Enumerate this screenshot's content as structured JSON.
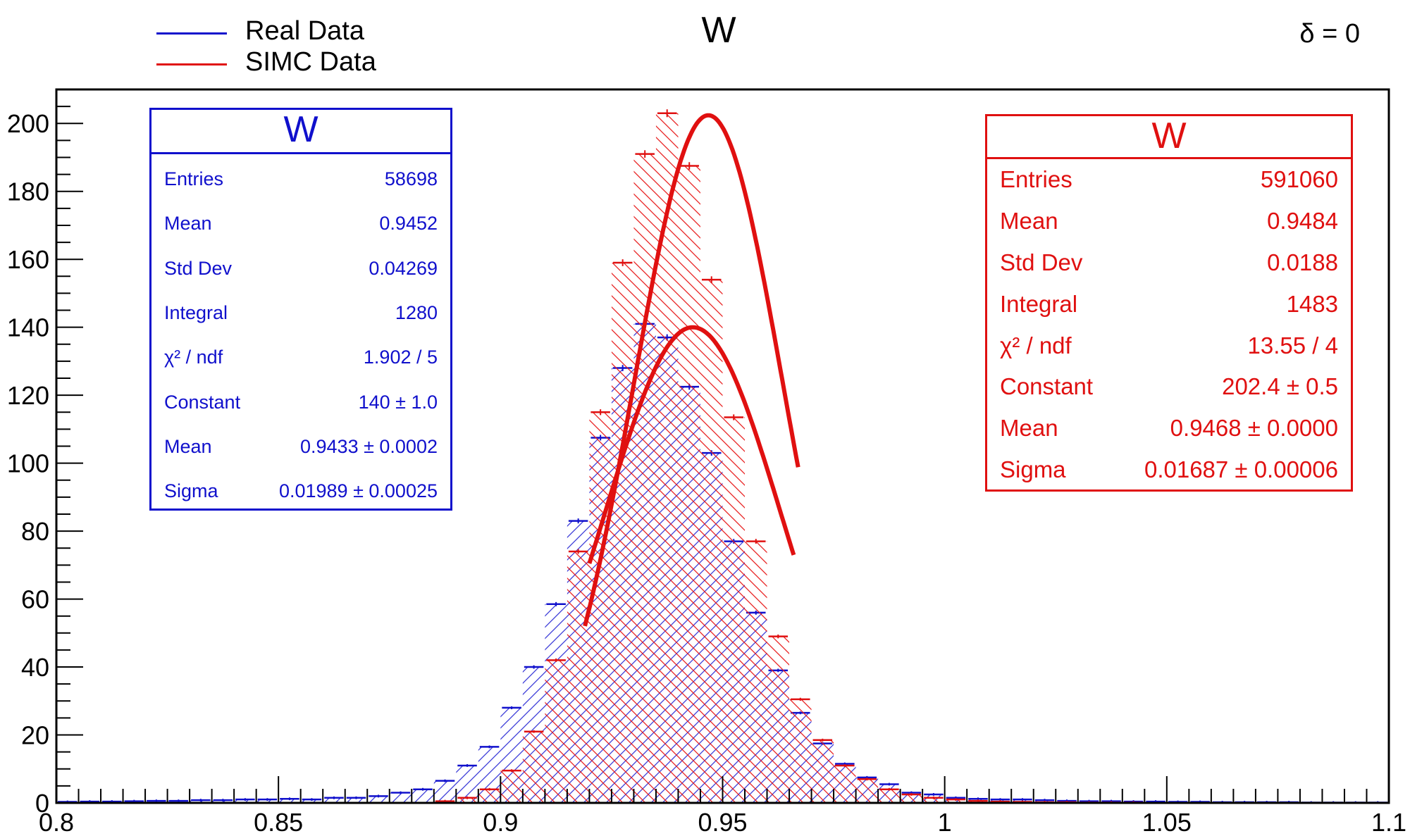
{
  "legend": [
    {
      "label": "Real Data",
      "color": "#1010cc"
    },
    {
      "label": "SIMC Data",
      "color": "#e01010"
    }
  ],
  "title": "W",
  "delta_label": "δ = 0",
  "stats_real": {
    "title": "W",
    "color": "#1010cc",
    "rows": [
      {
        "label": "Entries",
        "value": "58698"
      },
      {
        "label": "Mean",
        "value": "0.9452"
      },
      {
        "label": "Std Dev",
        "value": "0.04269"
      },
      {
        "label": "Integral",
        "value": "1280"
      },
      {
        "label": "χ² / ndf",
        "value": "1.902 / 5"
      },
      {
        "label": "Constant",
        "value": "140 ± 1.0"
      },
      {
        "label": "Mean",
        "value": "0.9433 ± 0.0002"
      },
      {
        "label": "Sigma",
        "value": "0.01989 ± 0.00025"
      }
    ]
  },
  "stats_simc": {
    "title": "W",
    "color": "#e01010",
    "rows": [
      {
        "label": "Entries",
        "value": "591060"
      },
      {
        "label": "Mean",
        "value": "0.9484"
      },
      {
        "label": "Std Dev",
        "value": "0.0188"
      },
      {
        "label": "Integral",
        "value": "1483"
      },
      {
        "label": "χ² / ndf",
        "value": "13.55 / 4"
      },
      {
        "label": "Constant",
        "value": "202.4 ± 0.5"
      },
      {
        "label": "Mean",
        "value": "0.9468 ± 0.0000"
      },
      {
        "label": "Sigma",
        "value": "0.01687 ± 0.00006"
      }
    ]
  },
  "chart_data": {
    "type": "bar",
    "title": "W",
    "xlim": [
      0.8,
      1.1
    ],
    "ylim": [
      0,
      210
    ],
    "bin_width": 0.005,
    "bin_low": [
      0.8,
      0.805,
      0.81,
      0.815,
      0.82,
      0.825,
      0.83,
      0.835,
      0.84,
      0.845,
      0.85,
      0.855,
      0.86,
      0.865,
      0.87,
      0.875,
      0.88,
      0.885,
      0.89,
      0.895,
      0.9,
      0.905,
      0.91,
      0.915,
      0.92,
      0.925,
      0.93,
      0.935,
      0.94,
      0.945,
      0.95,
      0.955,
      0.96,
      0.965,
      0.97,
      0.975,
      0.98,
      0.985,
      0.99,
      0.995,
      1.0,
      1.005,
      1.01,
      1.015,
      1.02,
      1.025,
      1.03,
      1.035,
      1.04,
      1.045,
      1.05,
      1.055,
      1.06,
      1.065,
      1.07,
      1.075,
      1.08,
      1.085,
      1.09,
      1.095
    ],
    "x_ticks": [
      0.8,
      0.85,
      0.9,
      0.95,
      1,
      1.05,
      1.1
    ],
    "x_tick_labels": [
      "0.8",
      "0.85",
      "0.9",
      "0.95",
      "1",
      "1.05",
      "1.1"
    ],
    "y_ticks": [
      0,
      20,
      40,
      60,
      80,
      100,
      120,
      140,
      160,
      180,
      200
    ],
    "y_tick_labels": [
      "0",
      "20",
      "40",
      "60",
      "80",
      "100",
      "120",
      "140",
      "160",
      "180",
      "200"
    ],
    "series": [
      {
        "name": "Real Data",
        "color": "#1010cc",
        "hatch": "diagonal",
        "values": [
          0.3,
          0.4,
          0.4,
          0.5,
          0.6,
          0.6,
          0.8,
          0.8,
          1.0,
          1.0,
          1.2,
          1.0,
          1.5,
          1.5,
          2.0,
          3.0,
          4.0,
          6.5,
          11.0,
          16.5,
          28.0,
          40.0,
          58.5,
          83.0,
          107.5,
          128.0,
          141.0,
          137.0,
          122.5,
          103.0,
          77.0,
          56.0,
          39.0,
          26.5,
          17.5,
          11.5,
          7.5,
          5.5,
          3.0,
          2.5,
          1.5,
          1.2,
          1.0,
          1.0,
          0.8,
          0.6,
          0.5,
          0.5,
          0.4,
          0.4,
          0.3,
          0.3,
          0.2,
          0.2,
          0.2,
          0.2,
          0.1,
          0.1,
          0.1,
          0.1
        ]
      },
      {
        "name": "SIMC Data",
        "color": "#e01010",
        "hatch": "antidiagonal",
        "values": [
          0.0,
          0.0,
          0.0,
          0.0,
          0.0,
          0.0,
          0.0,
          0.0,
          0.0,
          0.0,
          0.0,
          0.0,
          0.0,
          0.0,
          0.0,
          0.0,
          0.0,
          0.5,
          1.5,
          4.0,
          9.5,
          21.0,
          42.0,
          74.0,
          115.0,
          159.0,
          191.0,
          203.0,
          187.5,
          154.0,
          113.5,
          77.0,
          49.0,
          30.5,
          18.5,
          11.0,
          7.0,
          4.0,
          2.5,
          1.5,
          1.0,
          0.6,
          0.4,
          0.3,
          0.2,
          0.2,
          0.1,
          0.1,
          0.1,
          0.0,
          0.0,
          0.0,
          0.0,
          0.0,
          0.0,
          0.0,
          0.0,
          0.0,
          0.0,
          0.0
        ]
      }
    ],
    "fits": [
      {
        "series": "Real Data",
        "type": "gaus",
        "constant": 140,
        "mean": 0.9433,
        "sigma": 0.01989,
        "range": [
          0.92,
          0.966
        ],
        "color": "#e01010"
      },
      {
        "series": "SIMC Data",
        "type": "gaus",
        "constant": 202.4,
        "mean": 0.9468,
        "sigma": 0.01687,
        "range": [
          0.919,
          0.967
        ],
        "color": "#e01010"
      }
    ]
  }
}
